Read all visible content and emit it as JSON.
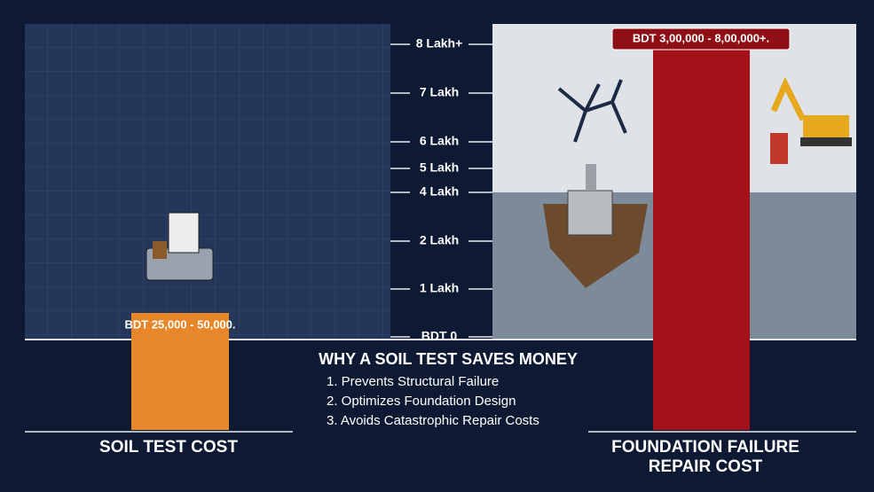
{
  "chart_data": {
    "type": "bar",
    "categories": [
      "SOIL TEST COST",
      "FOUNDATION FAILURE REPAIR COST"
    ],
    "values": [
      50000,
      800000
    ],
    "value_labels": [
      "BDT 25,000 - 50,000.",
      "BDT 3,00,000 - 8,00,000+."
    ],
    "colors": [
      "#e8872a",
      "#a3121a"
    ],
    "yticks": [
      {
        "value": 0,
        "label": "BDT 0"
      },
      {
        "value": 100000,
        "label": "1 Lakh"
      },
      {
        "value": 200000,
        "label": "2 Lakh"
      },
      {
        "value": 400000,
        "label": "4 Lakh"
      },
      {
        "value": 500000,
        "label": "5 Lakh"
      },
      {
        "value": 600000,
        "label": "6 Lakh"
      },
      {
        "value": 700000,
        "label": "7 Lakh"
      },
      {
        "value": 800000,
        "label": "8 Lakh+"
      }
    ],
    "ylim": [
      0,
      800000
    ],
    "notes_title": "WHY A SOIL TEST SAVES MONEY",
    "notes": [
      "1. Prevents Structural Failure",
      "2. Optimizes Foundation Design",
      "3. Avoids Catastrophic Repair Costs"
    ]
  }
}
